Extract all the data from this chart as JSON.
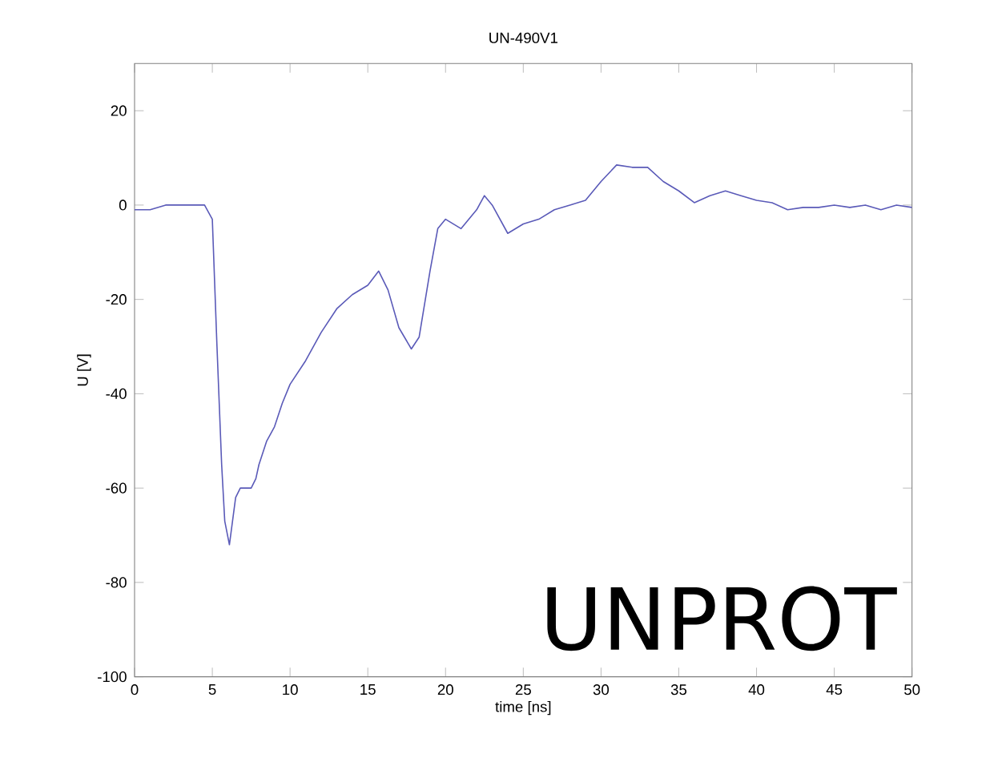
{
  "chart_data": {
    "type": "line",
    "title": "UN-490V1",
    "xlabel": "time [ns]",
    "ylabel": "U [V]",
    "annotations": [
      "UNPROT"
    ],
    "xlim": [
      0,
      50
    ],
    "ylim": [
      -100,
      30
    ],
    "xticks": [
      0,
      5,
      10,
      15,
      20,
      25,
      30,
      35,
      40,
      45,
      50
    ],
    "yticks": [
      -100,
      -80,
      -60,
      -40,
      -20,
      0,
      20
    ],
    "series": [
      {
        "color": "#5a5ab8",
        "x": [
          0,
          1,
          2,
          3,
          4,
          4.5,
          5,
          5.3,
          5.6,
          5.8,
          6.1,
          6.5,
          6.8,
          7.5,
          7.8,
          8,
          8.5,
          9,
          9.5,
          10,
          11,
          12,
          13,
          14,
          15,
          15.7,
          16.3,
          17,
          17.8,
          18.3,
          19,
          19.5,
          20,
          21,
          22,
          22.5,
          23,
          24,
          25,
          26,
          27,
          28,
          29,
          30,
          31,
          32,
          33,
          34,
          35,
          36,
          37,
          38,
          39,
          40,
          41,
          42,
          43,
          44,
          45,
          46,
          47,
          48,
          49,
          50
        ],
        "values": [
          -1,
          -1,
          0,
          0,
          0,
          0,
          -3,
          -30,
          -55,
          -67,
          -72,
          -62,
          -60,
          -60,
          -58,
          -55,
          -50,
          -47,
          -42,
          -38,
          -33,
          -27,
          -22,
          -19,
          -17,
          -14,
          -18,
          -26,
          -30.5,
          -28,
          -14,
          -5,
          -3,
          -5,
          -1,
          2,
          0,
          -6,
          -4,
          -3,
          -1,
          0,
          1,
          5,
          8.5,
          8,
          8,
          5,
          3,
          0.5,
          2,
          3,
          2,
          1,
          0.5,
          -1,
          -0.5,
          -0.5,
          0,
          -0.5,
          0,
          -1,
          0,
          -0.5
        ]
      }
    ]
  }
}
